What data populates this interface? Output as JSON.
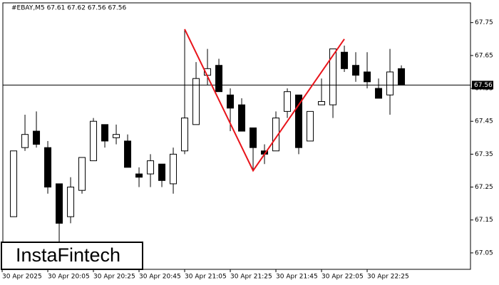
{
  "chart_data": {
    "type": "candlestick",
    "title": "#EBAY,M5  67.61 67.62 67.56 67.56",
    "open": [
      67.16,
      67.37,
      67.42,
      67.37,
      67.26,
      67.16,
      67.24,
      67.33,
      67.44,
      67.4,
      67.39,
      67.29,
      67.29,
      67.32,
      67.26,
      67.36,
      67.44,
      67.59,
      67.62,
      67.53,
      67.5,
      67.43,
      67.36,
      67.36,
      67.48,
      67.53,
      67.39,
      67.5,
      67.5,
      67.66,
      67.62,
      67.6,
      67.55,
      67.53,
      67.61
    ],
    "high": [
      67.36,
      67.47,
      67.48,
      67.39,
      67.26,
      67.28,
      67.34,
      67.46,
      67.44,
      67.44,
      67.41,
      67.31,
      67.35,
      67.32,
      67.37,
      67.73,
      67.63,
      67.67,
      67.64,
      67.55,
      67.52,
      67.43,
      67.38,
      67.48,
      67.55,
      67.53,
      67.48,
      67.58,
      67.67,
      67.68,
      67.66,
      67.66,
      67.58,
      67.67,
      67.62
    ],
    "low": [
      67.16,
      67.36,
      67.37,
      67.23,
      67.08,
      67.14,
      67.23,
      67.33,
      67.37,
      67.38,
      67.31,
      67.25,
      67.25,
      67.25,
      67.23,
      67.35,
      67.44,
      67.56,
      67.54,
      67.42,
      67.42,
      67.3,
      67.32,
      67.36,
      67.46,
      67.35,
      67.39,
      67.5,
      67.46,
      67.6,
      67.57,
      67.55,
      67.52,
      67.47,
      67.56
    ],
    "close": [
      67.36,
      67.41,
      67.38,
      67.25,
      67.14,
      67.25,
      67.34,
      67.45,
      67.39,
      67.41,
      67.31,
      67.28,
      67.33,
      67.27,
      67.35,
      67.46,
      67.58,
      67.61,
      67.54,
      67.49,
      67.42,
      67.37,
      67.35,
      67.46,
      67.54,
      67.37,
      67.48,
      67.51,
      67.67,
      67.61,
      67.59,
      67.57,
      67.52,
      67.6,
      67.56
    ],
    "up_color": "#ffffff",
    "down_color": "#000000",
    "xlim": [
      -0.94,
      40.06
    ],
    "xticks": [
      {
        "value": -1,
        "label": "30 Apr 2025"
      },
      {
        "value": 3,
        "label": "30 Apr 20:05"
      },
      {
        "value": 7,
        "label": "30 Apr 20:25"
      },
      {
        "value": 11,
        "label": "30 Apr 20:45"
      },
      {
        "value": 15,
        "label": "30 Apr 21:05"
      },
      {
        "value": 19,
        "label": "30 Apr 21:25"
      },
      {
        "value": 23,
        "label": "30 Apr 21:45"
      },
      {
        "value": 27,
        "label": "30 Apr 22:05"
      },
      {
        "value": 31,
        "label": "30 Apr 22:25"
      }
    ],
    "ylim": [
      67.0,
      67.81
    ],
    "yticks": [
      67.05,
      67.15,
      67.25,
      67.35,
      67.45,
      67.55,
      67.65,
      67.75
    ],
    "current_price": 67.56,
    "pattern": {
      "color": "#e8141b",
      "x": [
        15,
        21,
        29
      ],
      "values": [
        67.73,
        67.3,
        67.7
      ]
    }
  },
  "brand": "InstaFintech"
}
